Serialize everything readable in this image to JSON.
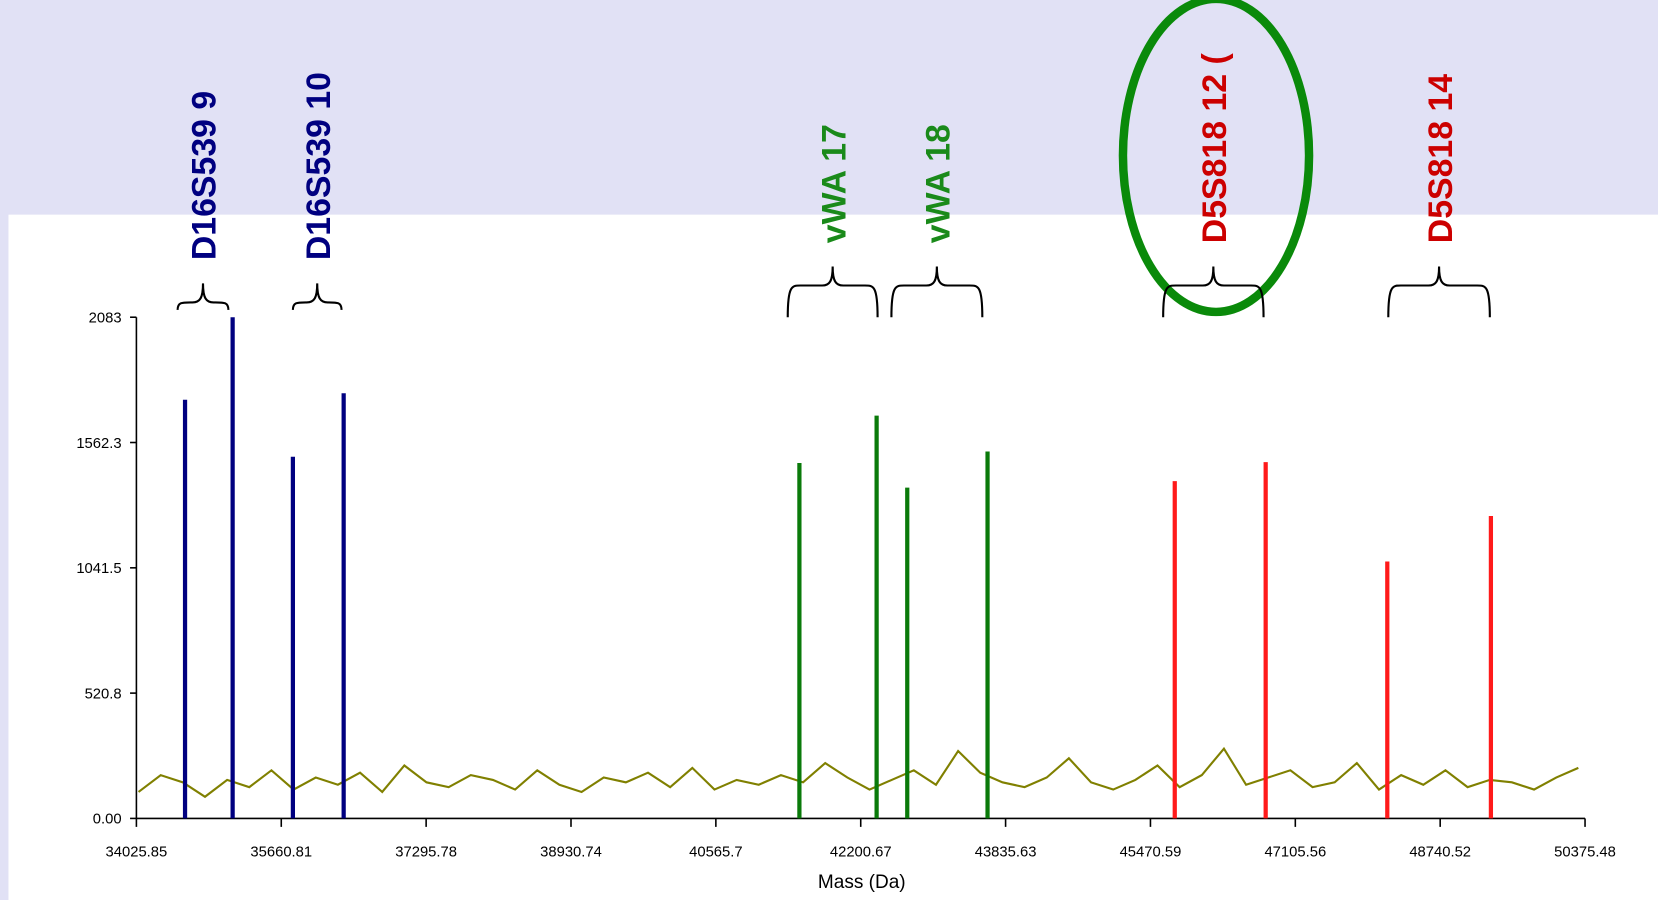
{
  "chart_data": {
    "type": "spectrum",
    "x_label": "Mass (Da)",
    "xlim": [
      34025.85,
      50375.48
    ],
    "xticks": [
      34025.85,
      35660.81,
      37295.78,
      38930.74,
      40565.7,
      42200.67,
      43835.63,
      45470.59,
      47105.56,
      48740.52,
      50375.48
    ],
    "ylim": [
      0,
      2083
    ],
    "yticks": [
      {
        "value": 0,
        "label": "0.00"
      },
      520.8,
      1041.5,
      1562.3,
      2083
    ],
    "series": [
      {
        "style": "line",
        "color": "#808000",
        "x": [
          34050,
          34300,
          34550,
          34800,
          35050,
          35300,
          35550,
          35800,
          36050,
          36300,
          36550,
          36800,
          37050,
          37300,
          37550,
          37800,
          38050,
          38300,
          38550,
          38800,
          39050,
          39300,
          39550,
          39800,
          40050,
          40300,
          40550,
          40800,
          41050,
          41300,
          41550,
          41800,
          42050,
          42300,
          42550,
          42800,
          43050,
          43300,
          43550,
          43800,
          44050,
          44300,
          44550,
          44800,
          45050,
          45300,
          45550,
          45800,
          46050,
          46300,
          46550,
          46800,
          47050,
          47300,
          47550,
          47800,
          48050,
          48300,
          48550,
          48800,
          49050,
          49300,
          49550,
          49800,
          50050,
          50300
        ],
        "values": [
          110,
          180,
          150,
          90,
          160,
          130,
          200,
          120,
          170,
          140,
          190,
          110,
          220,
          150,
          130,
          180,
          160,
          120,
          200,
          140,
          110,
          170,
          150,
          190,
          130,
          210,
          120,
          160,
          140,
          180,
          150,
          230,
          170,
          120,
          160,
          200,
          140,
          280,
          190,
          150,
          130,
          170,
          250,
          150,
          120,
          160,
          220,
          130,
          180,
          290,
          140,
          170,
          200,
          130,
          150,
          230,
          120,
          180,
          140,
          200,
          130,
          160,
          150,
          120,
          170,
          210
        ]
      },
      {
        "style": "stick",
        "color": "#000080",
        "x": [
          34574.8,
          35111.9,
          35792,
          36365
        ],
        "values": [
          1740,
          2083,
          1503,
          1767
        ]
      },
      {
        "style": "stick",
        "color": "#0a7a0a",
        "x": [
          41508.6,
          42380,
          42725.8,
          43632
        ],
        "values": [
          1477,
          1674,
          1375,
          1525
        ]
      },
      {
        "style": "stick",
        "color": "#ff1a1a",
        "x": [
          45744.9,
          46771,
          48143.6,
          49313
        ],
        "values": [
          1402,
          1481,
          1068,
          1257
        ]
      }
    ],
    "annotations": [
      {
        "text": "D16S539 9",
        "color": "#000080",
        "span": [
          34491,
          35064
        ]
      },
      {
        "text": "D16S539 10",
        "color": "#000080",
        "span": [
          35792,
          36341
        ]
      },
      {
        "text": "vWA 17",
        "color": "#1a8a1a",
        "span": [
          41377,
          42391
        ]
      },
      {
        "text": "vWA 18",
        "color": "#1a8a1a",
        "span": [
          42547,
          43573
        ]
      },
      {
        "text": "D5S818 12 (",
        "color": "#cc0000",
        "span": [
          45614,
          46747
        ]
      },
      {
        "text": "D5S818 14",
        "color": "#cc0000",
        "span": [
          48155,
          49301
        ]
      }
    ]
  }
}
